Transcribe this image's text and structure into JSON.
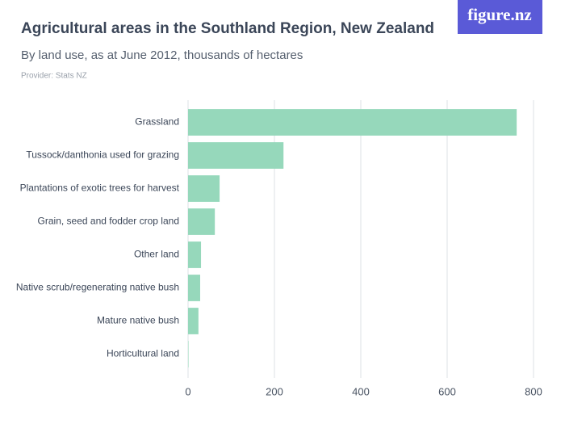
{
  "logo": "figure.nz",
  "chart_data": {
    "type": "bar",
    "orientation": "horizontal",
    "title": "Agricultural areas in the Southland Region, New Zealand",
    "subtitle": "By land use, as at June 2012, thousands of hectares",
    "source": "Provider: Stats NZ",
    "categories": [
      "Grassland",
      "Tussock/danthonia used for grazing",
      "Plantations of exotic trees for harvest",
      "Grain, seed and fodder crop land",
      "Other land",
      "Native scrub/regenerating native bush",
      "Mature native bush",
      "Horticultural land"
    ],
    "values": [
      761,
      221,
      73,
      62,
      30,
      28,
      24,
      1
    ],
    "color": "#96d8bb",
    "xlim": [
      0,
      800
    ],
    "xticks": [
      0,
      200,
      400,
      600,
      800
    ],
    "grid": true
  }
}
